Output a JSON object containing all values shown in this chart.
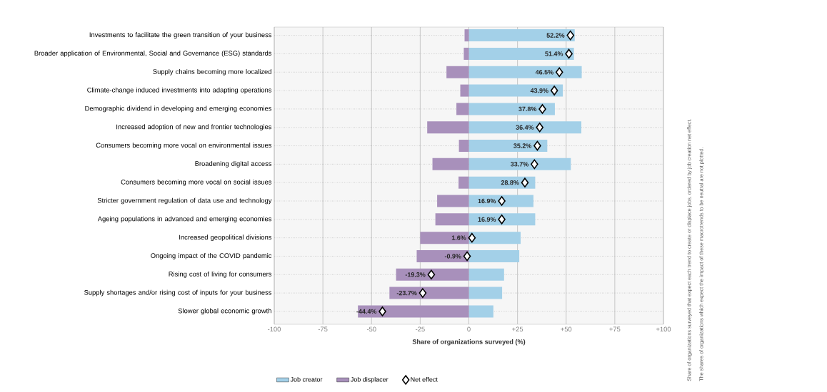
{
  "chart_data": {
    "type": "bar",
    "orientation": "horizontal",
    "stacked": true,
    "categories": [
      "Investments to facilitate the green transition of your business",
      "Broader application of Environmental, Social and Governance (ESG) standards",
      "Supply chains becoming more localized",
      "Climate-change induced investments into adapting operations",
      "Demographic dividend in developing and emerging economies",
      "Increased adoption of new and frontier technologies",
      "Consumers becoming more vocal on environmental issues",
      "Broadening digital access",
      "Consumers becoming more vocal on social issues",
      "Stricter government regulation of data use and technology",
      "Ageing populations in advanced and emerging economies",
      "Increased geopolitical divisions",
      "Ongoing impact of the COVID pandemic",
      "Rising cost of living for consumers",
      "Supply shortages and/or rising cost of inputs for your business",
      "Slower global economic growth"
    ],
    "series": [
      {
        "name": "Job creator",
        "color": "#a3d0e8",
        "values": [
          54.4,
          54.0,
          58.0,
          48.3,
          44.2,
          57.8,
          40.3,
          52.4,
          34.1,
          33.2,
          34.1,
          26.6,
          25.9,
          18.1,
          17.1,
          12.6
        ]
      },
      {
        "name": "Job displacer",
        "color": "#a890bb",
        "values": [
          -2.2,
          -2.6,
          -11.5,
          -4.4,
          -6.4,
          -21.4,
          -5.1,
          -18.7,
          -5.3,
          -16.3,
          -17.2,
          -25.0,
          -26.8,
          -37.4,
          -40.8,
          -57.0
        ]
      },
      {
        "name": "Net effect",
        "type": "scatter",
        "marker": "diamond",
        "color": "#ffffff",
        "values": [
          52.2,
          51.4,
          46.5,
          43.9,
          37.8,
          36.4,
          35.2,
          33.7,
          28.8,
          16.9,
          16.9,
          1.6,
          -0.9,
          -19.3,
          -23.7,
          -44.4
        ],
        "value_labels": [
          "52.2%",
          "51.4%",
          "46.5%",
          "43.9%",
          "37.8%",
          "36.4%",
          "35.2%",
          "33.7%",
          "28.8%",
          "16.9%",
          "16.9%",
          "1.6%",
          "-0.9%",
          "-19.3%",
          "-23.7%",
          "-44.4%"
        ]
      }
    ],
    "xlim": [
      -100,
      100
    ],
    "xticks": [
      -100,
      -75,
      -50,
      -25,
      0,
      {
        "value": 25,
        "label": "+25"
      },
      {
        "value": 50,
        "label": "+50"
      },
      {
        "value": 75,
        "label": "+75"
      },
      {
        "value": 100,
        "label": "+100"
      }
    ],
    "xlabel": "Share of organizations surveyed (%)",
    "grid": true,
    "legend": "bottom left",
    "annotations": [
      "Share of organizations surveyed that expect each trend to create or displace jobs, ordered by job creation net effect.",
      "The shares of organizations which expect the impact of these macrotrends to be neutral are not plotted."
    ]
  }
}
